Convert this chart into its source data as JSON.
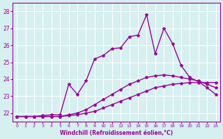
{
  "xlabel": "Windchill (Refroidissement éolien,°C)",
  "x_ticks": [
    0,
    1,
    2,
    3,
    4,
    5,
    6,
    7,
    8,
    9,
    10,
    11,
    12,
    13,
    14,
    15,
    16,
    17,
    18,
    19,
    20,
    21,
    22,
    23
  ],
  "ylim": [
    21.5,
    28.5
  ],
  "yticks": [
    22,
    23,
    24,
    25,
    26,
    27,
    28
  ],
  "background_color": "#d6f0f0",
  "grid_color": "#ffffff",
  "line_color": "#990099",
  "line_color2": "#cc33cc",
  "line1_x": [
    0,
    1,
    2,
    3,
    4,
    5,
    6,
    7,
    8,
    9,
    10,
    11,
    12,
    13,
    14,
    15,
    16,
    17,
    18,
    19,
    20,
    21,
    22,
    23
  ],
  "line1_y": [
    21.8,
    21.8,
    21.8,
    21.8,
    21.8,
    21.8,
    21.85,
    21.9,
    22.0,
    22.1,
    22.3,
    22.5,
    22.7,
    22.9,
    23.1,
    23.3,
    23.5,
    23.6,
    23.7,
    23.75,
    23.8,
    23.8,
    23.8,
    23.8
  ],
  "line2_x": [
    0,
    1,
    2,
    3,
    4,
    5,
    6,
    7,
    8,
    9,
    10,
    11,
    12,
    13,
    14,
    15,
    16,
    17,
    18,
    19,
    20,
    21,
    22,
    23
  ],
  "line2_y": [
    21.8,
    21.8,
    21.8,
    21.8,
    21.8,
    21.8,
    21.9,
    22.0,
    22.2,
    22.5,
    22.8,
    23.1,
    23.4,
    23.7,
    23.9,
    24.1,
    24.2,
    24.25,
    24.2,
    24.1,
    24.0,
    23.9,
    23.7,
    23.5
  ],
  "line3_x": [
    0,
    1,
    2,
    3,
    4,
    5,
    6,
    7,
    8,
    9,
    10,
    11,
    12,
    13,
    14,
    15,
    16,
    17,
    18,
    19,
    20,
    21,
    22,
    23
  ],
  "line3_y": [
    21.8,
    21.8,
    21.8,
    21.85,
    21.9,
    21.9,
    23.7,
    23.1,
    23.9,
    25.2,
    25.4,
    25.8,
    25.85,
    26.5,
    26.6,
    27.8,
    25.5,
    27.0,
    26.1,
    24.8,
    24.1,
    23.85,
    23.5,
    23.1
  ],
  "marker_size": 3,
  "line_width": 1.0
}
